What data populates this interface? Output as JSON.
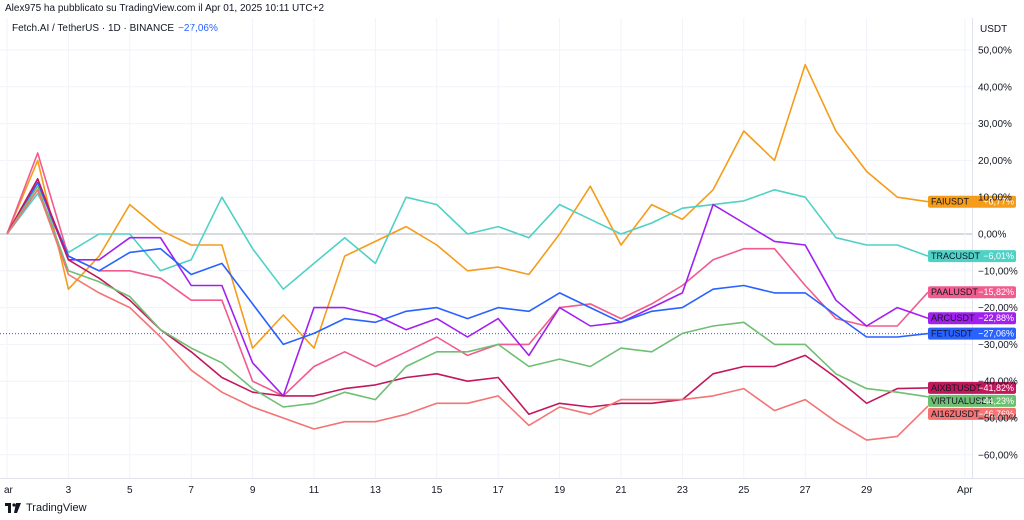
{
  "header": {
    "published": "Alex975 ha pubblicato su TradingView.com il Apr 01, 2025 10:11 UTC+2",
    "symbol": "Fetch.AI / TetherUS · 1D · BINANCE",
    "symbol_change": "−27,06%",
    "currency": "USDT"
  },
  "footer": {
    "brand": "TradingView",
    "logo_icon": "tradingview-logo-icon"
  },
  "chart_data": {
    "type": "line",
    "x": [
      "ar",
      "2",
      "3",
      "4",
      "5",
      "6",
      "7",
      "8",
      "9",
      "10",
      "11",
      "12",
      "13",
      "14",
      "15",
      "16",
      "17",
      "18",
      "19",
      "20",
      "21",
      "22",
      "23",
      "24",
      "25",
      "26",
      "27",
      "28",
      "29",
      "30",
      "31"
    ],
    "x_tick_labels": [
      "ar",
      "3",
      "5",
      "7",
      "9",
      "11",
      "13",
      "15",
      "17",
      "19",
      "21",
      "23",
      "25",
      "27",
      "29",
      "Apr"
    ],
    "y_tick_labels": [
      "50,00%",
      "40,00%",
      "30,00%",
      "20,00%",
      "10,00%",
      "0,00%",
      "−10,00%",
      "−20,00%",
      "−30,00%",
      "−40,00%",
      "−50,00%",
      "−60,00%"
    ],
    "ylim": [
      -65,
      55
    ],
    "grid": true,
    "zero_line": true,
    "series": [
      {
        "name": "FAIUSDT",
        "label": "FAIUSDT",
        "change": "+8,77%",
        "color": "#f59c1a",
        "values": [
          0,
          20,
          -15,
          -6,
          8,
          1,
          -3,
          -3,
          -31,
          -22,
          -31,
          -6,
          -2,
          2,
          -3,
          -10,
          -9,
          -11,
          0,
          13,
          -3,
          8,
          4,
          12,
          28,
          20,
          46,
          28,
          17,
          10,
          8.77
        ]
      },
      {
        "name": "TRACUSDT",
        "label": "TRACUSDT",
        "change": "−6,01%",
        "color": "#4fd1c5",
        "values": [
          0,
          11,
          -5,
          0,
          0,
          -10,
          -7,
          10,
          -4,
          -15,
          -8,
          -1,
          -8,
          10,
          8,
          0,
          2,
          -1,
          8,
          4,
          0,
          3,
          7,
          8,
          9,
          12,
          10,
          -1,
          -3,
          -3,
          -6.01
        ]
      },
      {
        "name": "PAALUSDT",
        "label": "PAALUSDT",
        "change": "−15,82%",
        "color": "#f15b8d",
        "values": [
          0,
          22,
          -6,
          -10,
          -10,
          -12,
          -18,
          -18,
          -40,
          -44,
          -36,
          -32,
          -36,
          -32,
          -28,
          -33,
          -30,
          -30,
          -20,
          -19,
          -23,
          -19,
          -14,
          -7,
          -4,
          -4,
          -14,
          -23,
          -25,
          -25,
          -15.82
        ]
      },
      {
        "name": "ARCUSDT",
        "label": "ARCUSDT",
        "change": "−22,88%",
        "color": "#a120f0",
        "values": [
          0,
          14,
          -7,
          -7,
          -1,
          -1,
          -14,
          -14,
          -35,
          -44,
          -20,
          -20,
          -22,
          -26,
          -23,
          -28,
          -23,
          -33,
          -20,
          -25,
          -24,
          -20,
          -16,
          8,
          3,
          -2,
          -3,
          -18,
          -25,
          -20,
          -22.88
        ]
      },
      {
        "name": "FETUSDT",
        "label": "FETUSDT",
        "change": "−27,06%",
        "color": "#2962ff",
        "values": [
          0,
          14,
          -6,
          -10,
          -5,
          -4,
          -11,
          -8,
          -19,
          -30,
          -27,
          -23,
          -24,
          -21,
          -20,
          -23,
          -20,
          -21,
          -16,
          -20,
          -24,
          -21,
          -20,
          -15,
          -14,
          -16,
          -16,
          -22,
          -28,
          -28,
          -27.06
        ]
      },
      {
        "name": "AIXBTUSDT",
        "label": "AIXBTUSDT",
        "change": "−41,82%",
        "color": "#c2185b",
        "values": [
          0,
          15,
          -7,
          -12,
          -18,
          -26,
          -32,
          -39,
          -43,
          -44,
          -44,
          -42,
          -41,
          -39,
          -38,
          -40,
          -39,
          -49,
          -46,
          -47,
          -46,
          -46,
          -45,
          -38,
          -36,
          -36,
          -33,
          -39,
          -46,
          -42,
          -41.82
        ]
      },
      {
        "name": "VIRTUALUSDT",
        "label": "VIRTUALUSDT",
        "change": "−44,23%",
        "color": "#6fbf73",
        "values": [
          0,
          13,
          -10,
          -13,
          -17,
          -26,
          -31,
          -35,
          -42,
          -47,
          -46,
          -43,
          -45,
          -36,
          -32,
          -32,
          -30,
          -36,
          -34,
          -36,
          -31,
          -32,
          -27,
          -25,
          -24,
          -30,
          -30,
          -38,
          -42,
          -43,
          -44.23
        ]
      },
      {
        "name": "AI16ZUSDT",
        "label": "AI16ZUSDT",
        "change": "−46,76%",
        "color": "#f47373",
        "values": [
          0,
          12,
          -11,
          -16,
          -20,
          -28,
          -37,
          -43,
          -47,
          -50,
          -53,
          -51,
          -51,
          -49,
          -46,
          -46,
          -44,
          -52,
          -47,
          -49,
          -45,
          -45,
          -45,
          -44,
          -42,
          -48,
          -45,
          -51,
          -56,
          -55,
          -46.76
        ]
      }
    ]
  }
}
